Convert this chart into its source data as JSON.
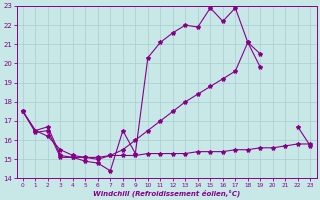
{
  "bg_color": "#c8e8e8",
  "grid_color": "#aacccc",
  "line_color": "#880088",
  "xlabel": "Windchill (Refroidissement éolien,°C)",
  "xlim_min": -0.5,
  "xlim_max": 23.5,
  "ylim_min": 14,
  "ylim_max": 23,
  "yticks": [
    14,
    15,
    16,
    17,
    18,
    19,
    20,
    21,
    22,
    23
  ],
  "xticks": [
    0,
    1,
    2,
    3,
    4,
    5,
    6,
    7,
    8,
    9,
    10,
    11,
    12,
    13,
    14,
    15,
    16,
    17,
    18,
    19,
    20,
    21,
    22,
    23
  ],
  "curve1_x": [
    0,
    1,
    2,
    3,
    4,
    5,
    6,
    7,
    8,
    9,
    10,
    11,
    12,
    13,
    14,
    15,
    16,
    17,
    18,
    19
  ],
  "curve1_y": [
    17.5,
    16.4,
    16.5,
    15.1,
    15.1,
    14.9,
    14.8,
    14.4,
    16.5,
    15.3,
    20.3,
    21.1,
    21.6,
    22.0,
    21.9,
    22.9,
    22.2,
    22.9,
    21.1,
    19.8
  ],
  "curve2_x": [
    0,
    1,
    2,
    3,
    4,
    5,
    6,
    7,
    8,
    9,
    10,
    11,
    12,
    13,
    14,
    15,
    16,
    17,
    18,
    19,
    20,
    21,
    22,
    23
  ],
  "curve2_y": [
    17.5,
    16.5,
    16.7,
    15.2,
    15.1,
    15.1,
    15.1,
    15.2,
    15.2,
    15.2,
    15.3,
    15.3,
    15.3,
    15.3,
    15.4,
    15.4,
    15.4,
    15.5,
    15.5,
    15.6,
    15.6,
    15.7,
    15.8,
    15.8
  ],
  "curve3_x": [
    0,
    1,
    2,
    3,
    4,
    5,
    6,
    7,
    8,
    9,
    10,
    11,
    12,
    13,
    14,
    15,
    16,
    17,
    18,
    19,
    20,
    21,
    22,
    23
  ],
  "curve3_y": [
    17.5,
    16.5,
    16.2,
    15.5,
    15.2,
    15.1,
    15.0,
    15.2,
    15.5,
    16.0,
    16.5,
    17.0,
    17.5,
    18.0,
    18.4,
    18.8,
    19.2,
    19.6,
    21.1,
    20.5,
    null,
    null,
    16.7,
    15.7
  ]
}
